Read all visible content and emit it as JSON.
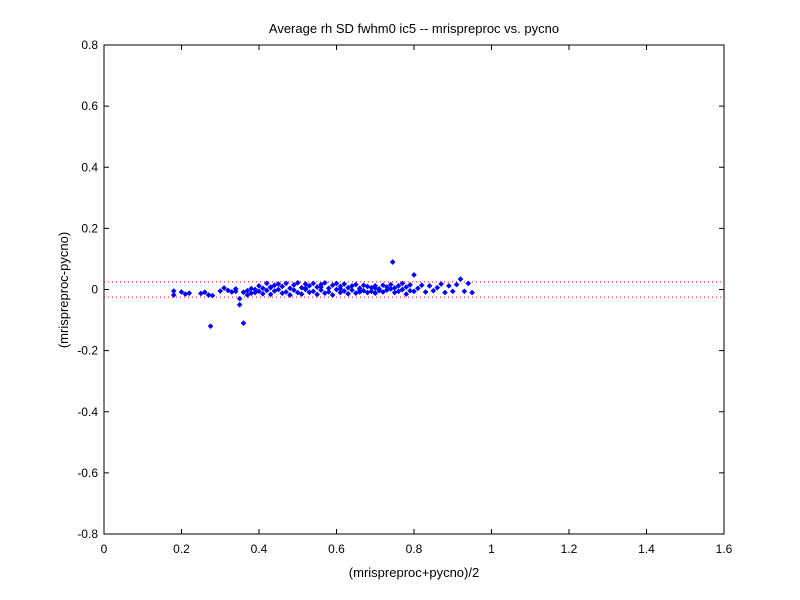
{
  "chart_data": {
    "type": "scatter",
    "title": "Average rh SD fwhm0 ic5 -- mrispreproc vs. pycno",
    "xlabel": "(mrispreproc+pycno)/2",
    "ylabel": "(mrispreproc-pycno)",
    "xlim": [
      0,
      1.6
    ],
    "ylim": [
      -0.8,
      0.8
    ],
    "xticks": [
      0,
      0.2,
      0.4,
      0.6,
      0.8,
      1,
      1.2,
      1.4,
      1.6
    ],
    "xtick_labels": [
      "0",
      "0.2",
      "0.4",
      "0.6",
      "0.8",
      "1",
      "1.2",
      "1.4",
      "1.6"
    ],
    "yticks": [
      -0.8,
      -0.6,
      -0.4,
      -0.2,
      0,
      0.2,
      0.4,
      0.6,
      0.8
    ],
    "ytick_labels": [
      "-0.8",
      "-0.6",
      "-0.4",
      "-0.2",
      "0",
      "0.2",
      "0.4",
      "0.6",
      "0.8"
    ],
    "grid": false,
    "marker_color": "#0000ff",
    "reference_lines": {
      "color": "#ff0000",
      "style": "dotted",
      "y": [
        0.025,
        -0.025
      ]
    },
    "points": [
      [
        0.18,
        -0.005
      ],
      [
        0.18,
        -0.018
      ],
      [
        0.2,
        -0.008
      ],
      [
        0.21,
        -0.015
      ],
      [
        0.22,
        -0.012
      ],
      [
        0.25,
        -0.013
      ],
      [
        0.26,
        -0.009
      ],
      [
        0.27,
        -0.018
      ],
      [
        0.28,
        -0.02
      ],
      [
        0.3,
        -0.005
      ],
      [
        0.31,
        0.005
      ],
      [
        0.275,
        -0.12
      ],
      [
        0.35,
        -0.05
      ],
      [
        0.36,
        -0.11
      ],
      [
        0.35,
        -0.03
      ],
      [
        0.32,
        -0.003
      ],
      [
        0.33,
        -0.008
      ],
      [
        0.34,
        -0.006
      ],
      [
        0.34,
        0.002
      ],
      [
        0.36,
        -0.009
      ],
      [
        0.37,
        -0.004
      ],
      [
        0.37,
        -0.018
      ],
      [
        0.38,
        0.003
      ],
      [
        0.38,
        -0.012
      ],
      [
        0.39,
        0.0
      ],
      [
        0.39,
        -0.01
      ],
      [
        0.4,
        0.012
      ],
      [
        0.4,
        -0.006
      ],
      [
        0.41,
        0.004
      ],
      [
        0.41,
        -0.014
      ],
      [
        0.42,
        0.02
      ],
      [
        0.42,
        -0.003
      ],
      [
        0.43,
        0.008
      ],
      [
        0.43,
        -0.016
      ],
      [
        0.44,
        0.014
      ],
      [
        0.44,
        -0.005
      ],
      [
        0.45,
        0.018
      ],
      [
        0.45,
        0.0
      ],
      [
        0.46,
        -0.012
      ],
      [
        0.46,
        0.01
      ],
      [
        0.47,
        0.02
      ],
      [
        0.47,
        -0.008
      ],
      [
        0.48,
        0.004
      ],
      [
        0.48,
        -0.018
      ],
      [
        0.49,
        0.015
      ],
      [
        0.49,
        -0.002
      ],
      [
        0.5,
        0.022
      ],
      [
        0.5,
        -0.01
      ],
      [
        0.51,
        0.006
      ],
      [
        0.51,
        -0.015
      ],
      [
        0.52,
        0.018
      ],
      [
        0.52,
        0.0
      ],
      [
        0.53,
        -0.009
      ],
      [
        0.53,
        0.012
      ],
      [
        0.54,
        0.02
      ],
      [
        0.54,
        -0.006
      ],
      [
        0.55,
        0.008
      ],
      [
        0.55,
        -0.016
      ],
      [
        0.56,
        0.016
      ],
      [
        0.56,
        -0.002
      ],
      [
        0.57,
        0.022
      ],
      [
        0.57,
        -0.012
      ],
      [
        0.58,
        0.004
      ],
      [
        0.58,
        -0.008
      ],
      [
        0.59,
        0.014
      ],
      [
        0.59,
        -0.018
      ],
      [
        0.6,
        0.02
      ],
      [
        0.6,
        0.0
      ],
      [
        0.61,
        -0.01
      ],
      [
        0.61,
        0.01
      ],
      [
        0.62,
        0.018
      ],
      [
        0.62,
        -0.005
      ],
      [
        0.63,
        0.006
      ],
      [
        0.63,
        -0.014
      ],
      [
        0.64,
        0.012
      ],
      [
        0.64,
        -0.002
      ],
      [
        0.65,
        0.016
      ],
      [
        0.65,
        -0.012
      ],
      [
        0.66,
        0.004
      ],
      [
        0.66,
        -0.008
      ],
      [
        0.67,
        0.014
      ],
      [
        0.67,
        -0.004
      ],
      [
        0.68,
        0.01
      ],
      [
        0.68,
        -0.01
      ],
      [
        0.69,
        0.006
      ],
      [
        0.69,
        -0.006
      ],
      [
        0.7,
        0.012
      ],
      [
        0.7,
        -0.012
      ],
      [
        0.71,
        0.002
      ],
      [
        0.71,
        -0.004
      ],
      [
        0.72,
        0.014
      ],
      [
        0.72,
        -0.008
      ],
      [
        0.73,
        0.008
      ],
      [
        0.73,
        -0.002
      ],
      [
        0.74,
        0.016
      ],
      [
        0.745,
        0.09
      ],
      [
        0.75,
        -0.01
      ],
      [
        0.75,
        0.005
      ],
      [
        0.76,
        0.012
      ],
      [
        0.76,
        -0.006
      ],
      [
        0.77,
        0.0
      ],
      [
        0.77,
        0.02
      ],
      [
        0.78,
        -0.015
      ],
      [
        0.78,
        0.008
      ],
      [
        0.79,
        0.015
      ],
      [
        0.79,
        -0.004
      ],
      [
        0.8,
        0.048
      ],
      [
        0.8,
        -0.006
      ],
      [
        0.81,
        0.004
      ],
      [
        0.82,
        0.014
      ],
      [
        0.83,
        -0.008
      ],
      [
        0.84,
        0.012
      ],
      [
        0.85,
        -0.004
      ],
      [
        0.86,
        0.006
      ],
      [
        0.87,
        0.018
      ],
      [
        0.88,
        -0.01
      ],
      [
        0.89,
        0.012
      ],
      [
        0.9,
        -0.006
      ],
      [
        0.91,
        0.016
      ],
      [
        0.92,
        0.034
      ],
      [
        0.93,
        -0.006
      ],
      [
        0.94,
        0.02
      ],
      [
        0.95,
        -0.01
      ],
      [
        0.43,
        0.006
      ],
      [
        0.52,
        0.004
      ],
      [
        0.61,
        0.002
      ],
      [
        0.66,
        -0.002
      ],
      [
        0.7,
        0.004
      ],
      [
        0.74,
        0.002
      ],
      [
        0.56,
        0.008
      ]
    ]
  }
}
